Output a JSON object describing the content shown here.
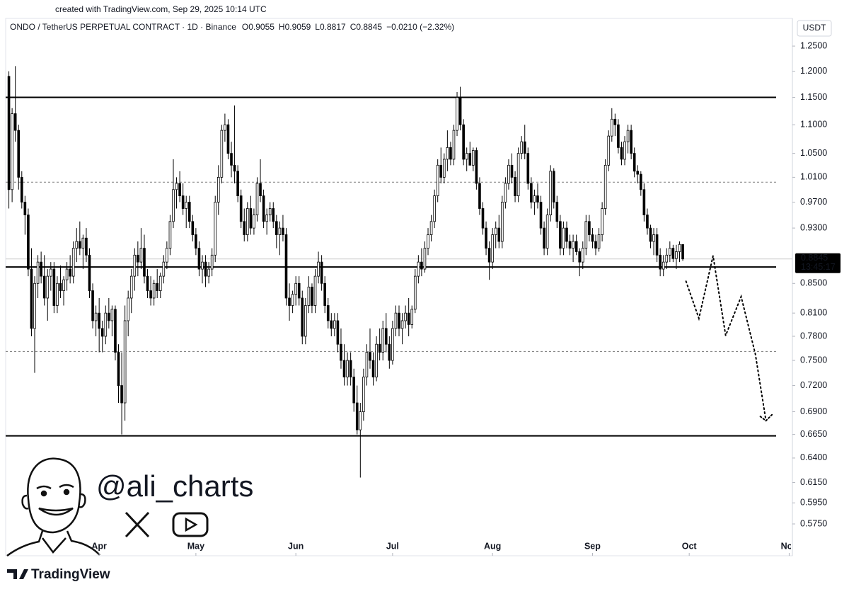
{
  "chart_data": {
    "type": "candlestick",
    "credit": "created with TradingView.com, Sep 29, 2025 10:14 UTC",
    "title": "ONDO / TetherUS PERPETUAL CONTRACT · 1D · Binance",
    "legend_values": [
      "O0.9055",
      "H0.9059",
      "L0.8817",
      "C0.8845",
      "−0.0210 (−2.32%)"
    ],
    "currency": "USDT",
    "countdown": "13:45:17",
    "watermark": "@ali_charts",
    "brand": "TradingView",
    "log_scale": true,
    "xlim": [
      -1,
      243
    ],
    "xticks": [
      {
        "value": 28,
        "label": "Apr"
      },
      {
        "value": 58,
        "label": "May"
      },
      {
        "value": 89,
        "label": "Jun"
      },
      {
        "value": 119,
        "label": "Jul"
      },
      {
        "value": 150,
        "label": "Aug"
      },
      {
        "value": 181,
        "label": "Sep"
      },
      {
        "value": 211,
        "label": "Oct"
      },
      {
        "value": 242,
        "label": "Nov"
      }
    ],
    "ylim": [
      0.546,
      1.3075
    ],
    "yticks": [
      {
        "value": 1.25,
        "label": "1.2500"
      },
      {
        "value": 1.2,
        "label": "1.2000"
      },
      {
        "value": 1.15,
        "label": "1.1500"
      },
      {
        "value": 1.1,
        "label": "1.1000"
      },
      {
        "value": 1.05,
        "label": "1.0500"
      },
      {
        "value": 1.01,
        "label": "1.0100"
      },
      {
        "value": 0.97,
        "label": "0.9700"
      },
      {
        "value": 0.93,
        "label": "0.9300"
      },
      {
        "value": 0.85,
        "label": "0.8500"
      },
      {
        "value": 0.81,
        "label": "0.8100"
      },
      {
        "value": 0.78,
        "label": "0.7800"
      },
      {
        "value": 0.75,
        "label": "0.7500"
      },
      {
        "value": 0.72,
        "label": "0.7200"
      },
      {
        "value": 0.69,
        "label": "0.6900"
      },
      {
        "value": 0.665,
        "label": "0.6650"
      },
      {
        "value": 0.64,
        "label": "0.6400"
      },
      {
        "value": 0.615,
        "label": "0.6150"
      },
      {
        "value": 0.595,
        "label": "0.5950"
      },
      {
        "value": 0.575,
        "label": "0.5750"
      }
    ],
    "levels": [
      {
        "value": 1.15,
        "style": "solid"
      },
      {
        "value": 1.002,
        "style": "dotted"
      },
      {
        "value": 0.873,
        "style": "solid"
      },
      {
        "value": 0.761,
        "style": "dotted"
      },
      {
        "value": 0.6635,
        "style": "solid"
      }
    ],
    "projection": {
      "x": [
        210,
        214,
        218.4,
        222.3,
        227.1,
        231.5,
        234.8
      ],
      "y": [
        0.853,
        0.803,
        0.889,
        0.781,
        0.832,
        0.758,
        0.68
      ]
    },
    "up_color": "#ffffff",
    "down_color": "#000000",
    "edge_color": "#000000",
    "ohlc": [
      [
        1.19,
        1.2,
        0.96,
        0.99
      ],
      [
        0.99,
        1.13,
        0.97,
        1.12
      ],
      [
        1.12,
        1.21,
        1.07,
        1.09
      ],
      [
        1.09,
        1.1,
        0.99,
        1.01
      ],
      [
        1.01,
        1.02,
        0.96,
        0.97
      ],
      [
        0.97,
        0.98,
        0.92,
        0.95
      ],
      [
        0.95,
        0.96,
        0.86,
        0.87
      ],
      [
        0.87,
        0.9,
        0.78,
        0.79
      ],
      [
        0.79,
        0.86,
        0.735,
        0.85
      ],
      [
        0.85,
        0.89,
        0.83,
        0.88
      ],
      [
        0.88,
        0.895,
        0.85,
        0.86
      ],
      [
        0.86,
        0.89,
        0.82,
        0.83
      ],
      [
        0.83,
        0.87,
        0.8,
        0.86
      ],
      [
        0.86,
        0.88,
        0.84,
        0.87
      ],
      [
        0.87,
        0.88,
        0.81,
        0.82
      ],
      [
        0.82,
        0.86,
        0.81,
        0.85
      ],
      [
        0.85,
        0.875,
        0.83,
        0.84
      ],
      [
        0.84,
        0.86,
        0.82,
        0.855
      ],
      [
        0.855,
        0.88,
        0.84,
        0.87
      ],
      [
        0.87,
        0.89,
        0.85,
        0.86
      ],
      [
        0.86,
        0.91,
        0.85,
        0.9
      ],
      [
        0.9,
        0.93,
        0.88,
        0.91
      ],
      [
        0.91,
        0.94,
        0.89,
        0.9
      ],
      [
        0.9,
        0.92,
        0.87,
        0.915
      ],
      [
        0.915,
        0.93,
        0.88,
        0.89
      ],
      [
        0.89,
        0.9,
        0.83,
        0.84
      ],
      [
        0.84,
        0.85,
        0.79,
        0.8
      ],
      [
        0.8,
        0.82,
        0.78,
        0.81
      ],
      [
        0.81,
        0.83,
        0.76,
        0.79
      ],
      [
        0.79,
        0.8,
        0.76,
        0.78
      ],
      [
        0.78,
        0.82,
        0.77,
        0.81
      ],
      [
        0.81,
        0.83,
        0.79,
        0.8
      ],
      [
        0.8,
        0.82,
        0.78,
        0.815
      ],
      [
        0.815,
        0.82,
        0.75,
        0.76
      ],
      [
        0.76,
        0.77,
        0.7,
        0.72
      ],
      [
        0.72,
        0.76,
        0.665,
        0.7
      ],
      [
        0.7,
        0.82,
        0.68,
        0.8
      ],
      [
        0.8,
        0.84,
        0.78,
        0.83
      ],
      [
        0.83,
        0.87,
        0.81,
        0.86
      ],
      [
        0.86,
        0.9,
        0.84,
        0.89
      ],
      [
        0.89,
        0.91,
        0.86,
        0.88
      ],
      [
        0.88,
        0.93,
        0.87,
        0.9
      ],
      [
        0.9,
        0.92,
        0.85,
        0.86
      ],
      [
        0.86,
        0.87,
        0.83,
        0.84
      ],
      [
        0.84,
        0.86,
        0.82,
        0.83
      ],
      [
        0.83,
        0.855,
        0.82,
        0.85
      ],
      [
        0.85,
        0.87,
        0.83,
        0.84
      ],
      [
        0.84,
        0.865,
        0.83,
        0.86
      ],
      [
        0.86,
        0.89,
        0.85,
        0.88
      ],
      [
        0.88,
        0.91,
        0.87,
        0.9
      ],
      [
        0.9,
        0.95,
        0.89,
        0.94
      ],
      [
        0.94,
        1.04,
        0.93,
        0.99
      ],
      [
        0.99,
        1.01,
        0.96,
        1.0
      ],
      [
        1.0,
        1.02,
        0.97,
        0.98
      ],
      [
        0.98,
        1.0,
        0.95,
        0.96
      ],
      [
        0.96,
        0.98,
        0.93,
        0.97
      ],
      [
        0.97,
        0.98,
        0.93,
        0.94
      ],
      [
        0.94,
        0.95,
        0.91,
        0.92
      ],
      [
        0.92,
        0.93,
        0.89,
        0.9
      ],
      [
        0.9,
        0.91,
        0.86,
        0.87
      ],
      [
        0.87,
        0.89,
        0.85,
        0.88
      ],
      [
        0.88,
        0.89,
        0.845,
        0.86
      ],
      [
        0.86,
        0.88,
        0.85,
        0.87
      ],
      [
        0.87,
        0.9,
        0.86,
        0.89
      ],
      [
        0.89,
        0.98,
        0.88,
        0.97
      ],
      [
        0.97,
        1.03,
        0.95,
        1.01
      ],
      [
        1.01,
        1.1,
        1.0,
        1.09
      ],
      [
        1.09,
        1.12,
        1.07,
        1.1
      ],
      [
        1.1,
        1.11,
        1.04,
        1.05
      ],
      [
        1.05,
        1.07,
        1.01,
        1.03
      ],
      [
        1.03,
        1.135,
        1.0,
        1.02
      ],
      [
        1.02,
        1.03,
        0.97,
        0.98
      ],
      [
        0.98,
        0.99,
        0.93,
        0.94
      ],
      [
        0.94,
        0.96,
        0.91,
        0.92
      ],
      [
        0.92,
        0.97,
        0.91,
        0.96
      ],
      [
        0.96,
        0.98,
        0.92,
        0.93
      ],
      [
        0.93,
        0.96,
        0.92,
        0.95
      ],
      [
        0.95,
        1.01,
        0.94,
        1.0
      ],
      [
        1.0,
        1.04,
        0.97,
        0.98
      ],
      [
        0.98,
        0.99,
        0.93,
        0.94
      ],
      [
        0.94,
        0.96,
        0.92,
        0.95
      ],
      [
        0.95,
        0.97,
        0.94,
        0.96
      ],
      [
        0.96,
        0.97,
        0.93,
        0.94
      ],
      [
        0.94,
        0.95,
        0.9,
        0.92
      ],
      [
        0.92,
        0.94,
        0.89,
        0.93
      ],
      [
        0.93,
        0.95,
        0.91,
        0.92
      ],
      [
        0.92,
        0.93,
        0.82,
        0.83
      ],
      [
        0.83,
        0.85,
        0.8,
        0.82
      ],
      [
        0.82,
        0.84,
        0.81,
        0.835
      ],
      [
        0.835,
        0.86,
        0.82,
        0.85
      ],
      [
        0.85,
        0.86,
        0.82,
        0.83
      ],
      [
        0.83,
        0.84,
        0.77,
        0.78
      ],
      [
        0.78,
        0.83,
        0.77,
        0.82
      ],
      [
        0.82,
        0.86,
        0.81,
        0.845
      ],
      [
        0.845,
        0.85,
        0.81,
        0.82
      ],
      [
        0.82,
        0.87,
        0.81,
        0.86
      ],
      [
        0.86,
        0.895,
        0.85,
        0.88
      ],
      [
        0.88,
        0.89,
        0.84,
        0.85
      ],
      [
        0.85,
        0.86,
        0.81,
        0.82
      ],
      [
        0.82,
        0.83,
        0.79,
        0.8
      ],
      [
        0.8,
        0.81,
        0.78,
        0.79
      ],
      [
        0.79,
        0.81,
        0.78,
        0.8
      ],
      [
        0.8,
        0.81,
        0.76,
        0.77
      ],
      [
        0.77,
        0.79,
        0.74,
        0.75
      ],
      [
        0.75,
        0.77,
        0.72,
        0.73
      ],
      [
        0.73,
        0.76,
        0.72,
        0.75
      ],
      [
        0.75,
        0.76,
        0.72,
        0.73
      ],
      [
        0.73,
        0.74,
        0.69,
        0.7
      ],
      [
        0.7,
        0.72,
        0.665,
        0.67
      ],
      [
        0.67,
        0.7,
        0.62,
        0.69
      ],
      [
        0.69,
        0.74,
        0.68,
        0.73
      ],
      [
        0.73,
        0.77,
        0.72,
        0.76
      ],
      [
        0.76,
        0.79,
        0.74,
        0.75
      ],
      [
        0.75,
        0.76,
        0.72,
        0.73
      ],
      [
        0.73,
        0.78,
        0.725,
        0.77
      ],
      [
        0.77,
        0.79,
        0.75,
        0.76
      ],
      [
        0.76,
        0.8,
        0.75,
        0.79
      ],
      [
        0.79,
        0.81,
        0.76,
        0.77
      ],
      [
        0.77,
        0.78,
        0.74,
        0.75
      ],
      [
        0.75,
        0.8,
        0.745,
        0.79
      ],
      [
        0.79,
        0.82,
        0.78,
        0.81
      ],
      [
        0.81,
        0.82,
        0.78,
        0.79
      ],
      [
        0.79,
        0.81,
        0.77,
        0.8
      ],
      [
        0.8,
        0.82,
        0.79,
        0.81
      ],
      [
        0.81,
        0.83,
        0.78,
        0.795
      ],
      [
        0.795,
        0.82,
        0.79,
        0.815
      ],
      [
        0.815,
        0.87,
        0.81,
        0.86
      ],
      [
        0.86,
        0.89,
        0.85,
        0.88
      ],
      [
        0.88,
        0.9,
        0.86,
        0.87
      ],
      [
        0.87,
        0.91,
        0.865,
        0.9
      ],
      [
        0.9,
        0.93,
        0.89,
        0.92
      ],
      [
        0.92,
        0.95,
        0.91,
        0.94
      ],
      [
        0.94,
        0.99,
        0.93,
        0.98
      ],
      [
        0.98,
        1.04,
        0.97,
        1.03
      ],
      [
        1.03,
        1.06,
        1.0,
        1.01
      ],
      [
        1.01,
        1.05,
        1.0,
        1.04
      ],
      [
        1.04,
        1.09,
        1.02,
        1.06
      ],
      [
        1.06,
        1.07,
        1.03,
        1.04
      ],
      [
        1.04,
        1.1,
        1.03,
        1.09
      ],
      [
        1.09,
        1.16,
        1.08,
        1.15
      ],
      [
        1.15,
        1.17,
        1.09,
        1.1
      ],
      [
        1.1,
        1.11,
        1.03,
        1.04
      ],
      [
        1.04,
        1.06,
        1.02,
        1.05
      ],
      [
        1.05,
        1.07,
        1.03,
        1.03
      ],
      [
        1.03,
        1.06,
        1.02,
        1.055
      ],
      [
        1.055,
        1.06,
        0.99,
        1.0
      ],
      [
        1.0,
        1.01,
        0.95,
        0.96
      ],
      [
        0.96,
        0.97,
        0.92,
        0.93
      ],
      [
        0.93,
        0.94,
        0.89,
        0.9
      ],
      [
        0.9,
        0.91,
        0.855,
        0.88
      ],
      [
        0.88,
        0.93,
        0.87,
        0.92
      ],
      [
        0.92,
        0.94,
        0.9,
        0.93
      ],
      [
        0.93,
        0.95,
        0.9,
        0.91
      ],
      [
        0.91,
        0.98,
        0.9,
        0.97
      ],
      [
        0.97,
        1.01,
        0.96,
        1.0
      ],
      [
        1.0,
        1.04,
        0.99,
        1.03
      ],
      [
        1.03,
        1.05,
        1.0,
        1.01
      ],
      [
        1.01,
        1.02,
        0.97,
        0.98
      ],
      [
        0.98,
        1.06,
        0.97,
        1.05
      ],
      [
        1.05,
        1.08,
        1.04,
        1.07
      ],
      [
        1.07,
        1.1,
        1.04,
        1.05
      ],
      [
        1.05,
        1.06,
        0.99,
        1.0
      ],
      [
        1.0,
        1.01,
        0.96,
        0.97
      ],
      [
        0.97,
        0.99,
        0.95,
        0.98
      ],
      [
        0.98,
        1.0,
        0.96,
        0.97
      ],
      [
        0.97,
        0.98,
        0.92,
        0.93
      ],
      [
        0.93,
        0.94,
        0.89,
        0.9
      ],
      [
        0.9,
        0.96,
        0.89,
        0.95
      ],
      [
        0.95,
        1.03,
        0.94,
        1.02
      ],
      [
        1.02,
        1.025,
        0.96,
        0.97
      ],
      [
        0.97,
        0.98,
        0.93,
        0.94
      ],
      [
        0.94,
        0.95,
        0.89,
        0.9
      ],
      [
        0.9,
        0.94,
        0.89,
        0.93
      ],
      [
        0.93,
        0.94,
        0.9,
        0.91
      ],
      [
        0.91,
        0.92,
        0.89,
        0.9
      ],
      [
        0.9,
        0.92,
        0.88,
        0.91
      ],
      [
        0.91,
        0.92,
        0.89,
        0.895
      ],
      [
        0.895,
        0.9,
        0.86,
        0.88
      ],
      [
        0.88,
        0.91,
        0.87,
        0.9
      ],
      [
        0.9,
        0.95,
        0.89,
        0.94
      ],
      [
        0.94,
        0.95,
        0.91,
        0.92
      ],
      [
        0.92,
        0.93,
        0.9,
        0.91
      ],
      [
        0.91,
        0.92,
        0.89,
        0.9
      ],
      [
        0.9,
        0.93,
        0.895,
        0.92
      ],
      [
        0.92,
        0.97,
        0.91,
        0.96
      ],
      [
        0.96,
        1.04,
        0.95,
        1.03
      ],
      [
        1.03,
        1.09,
        1.02,
        1.08
      ],
      [
        1.08,
        1.13,
        1.07,
        1.11
      ],
      [
        1.11,
        1.12,
        1.08,
        1.1
      ],
      [
        1.1,
        1.11,
        1.05,
        1.06
      ],
      [
        1.06,
        1.07,
        1.03,
        1.04
      ],
      [
        1.04,
        1.08,
        1.03,
        1.07
      ],
      [
        1.07,
        1.1,
        1.05,
        1.09
      ],
      [
        1.09,
        1.1,
        1.04,
        1.05
      ],
      [
        1.05,
        1.06,
        1.01,
        1.02
      ],
      [
        1.02,
        1.03,
        1.0,
        1.015
      ],
      [
        1.015,
        1.02,
        0.98,
        0.99
      ],
      [
        0.99,
        1.0,
        0.94,
        0.95
      ],
      [
        0.95,
        0.96,
        0.92,
        0.93
      ],
      [
        0.93,
        0.935,
        0.9,
        0.91
      ],
      [
        0.91,
        0.93,
        0.89,
        0.92
      ],
      [
        0.92,
        0.93,
        0.88,
        0.89
      ],
      [
        0.89,
        0.9,
        0.86,
        0.87
      ],
      [
        0.87,
        0.89,
        0.86,
        0.88
      ],
      [
        0.88,
        0.9,
        0.87,
        0.89
      ],
      [
        0.89,
        0.91,
        0.88,
        0.9
      ],
      [
        0.9,
        0.905,
        0.88,
        0.885
      ],
      [
        0.885,
        0.905,
        0.87,
        0.895
      ],
      [
        0.895,
        0.91,
        0.88,
        0.9055
      ],
      [
        0.9055,
        0.9059,
        0.8817,
        0.8845
      ]
    ]
  }
}
